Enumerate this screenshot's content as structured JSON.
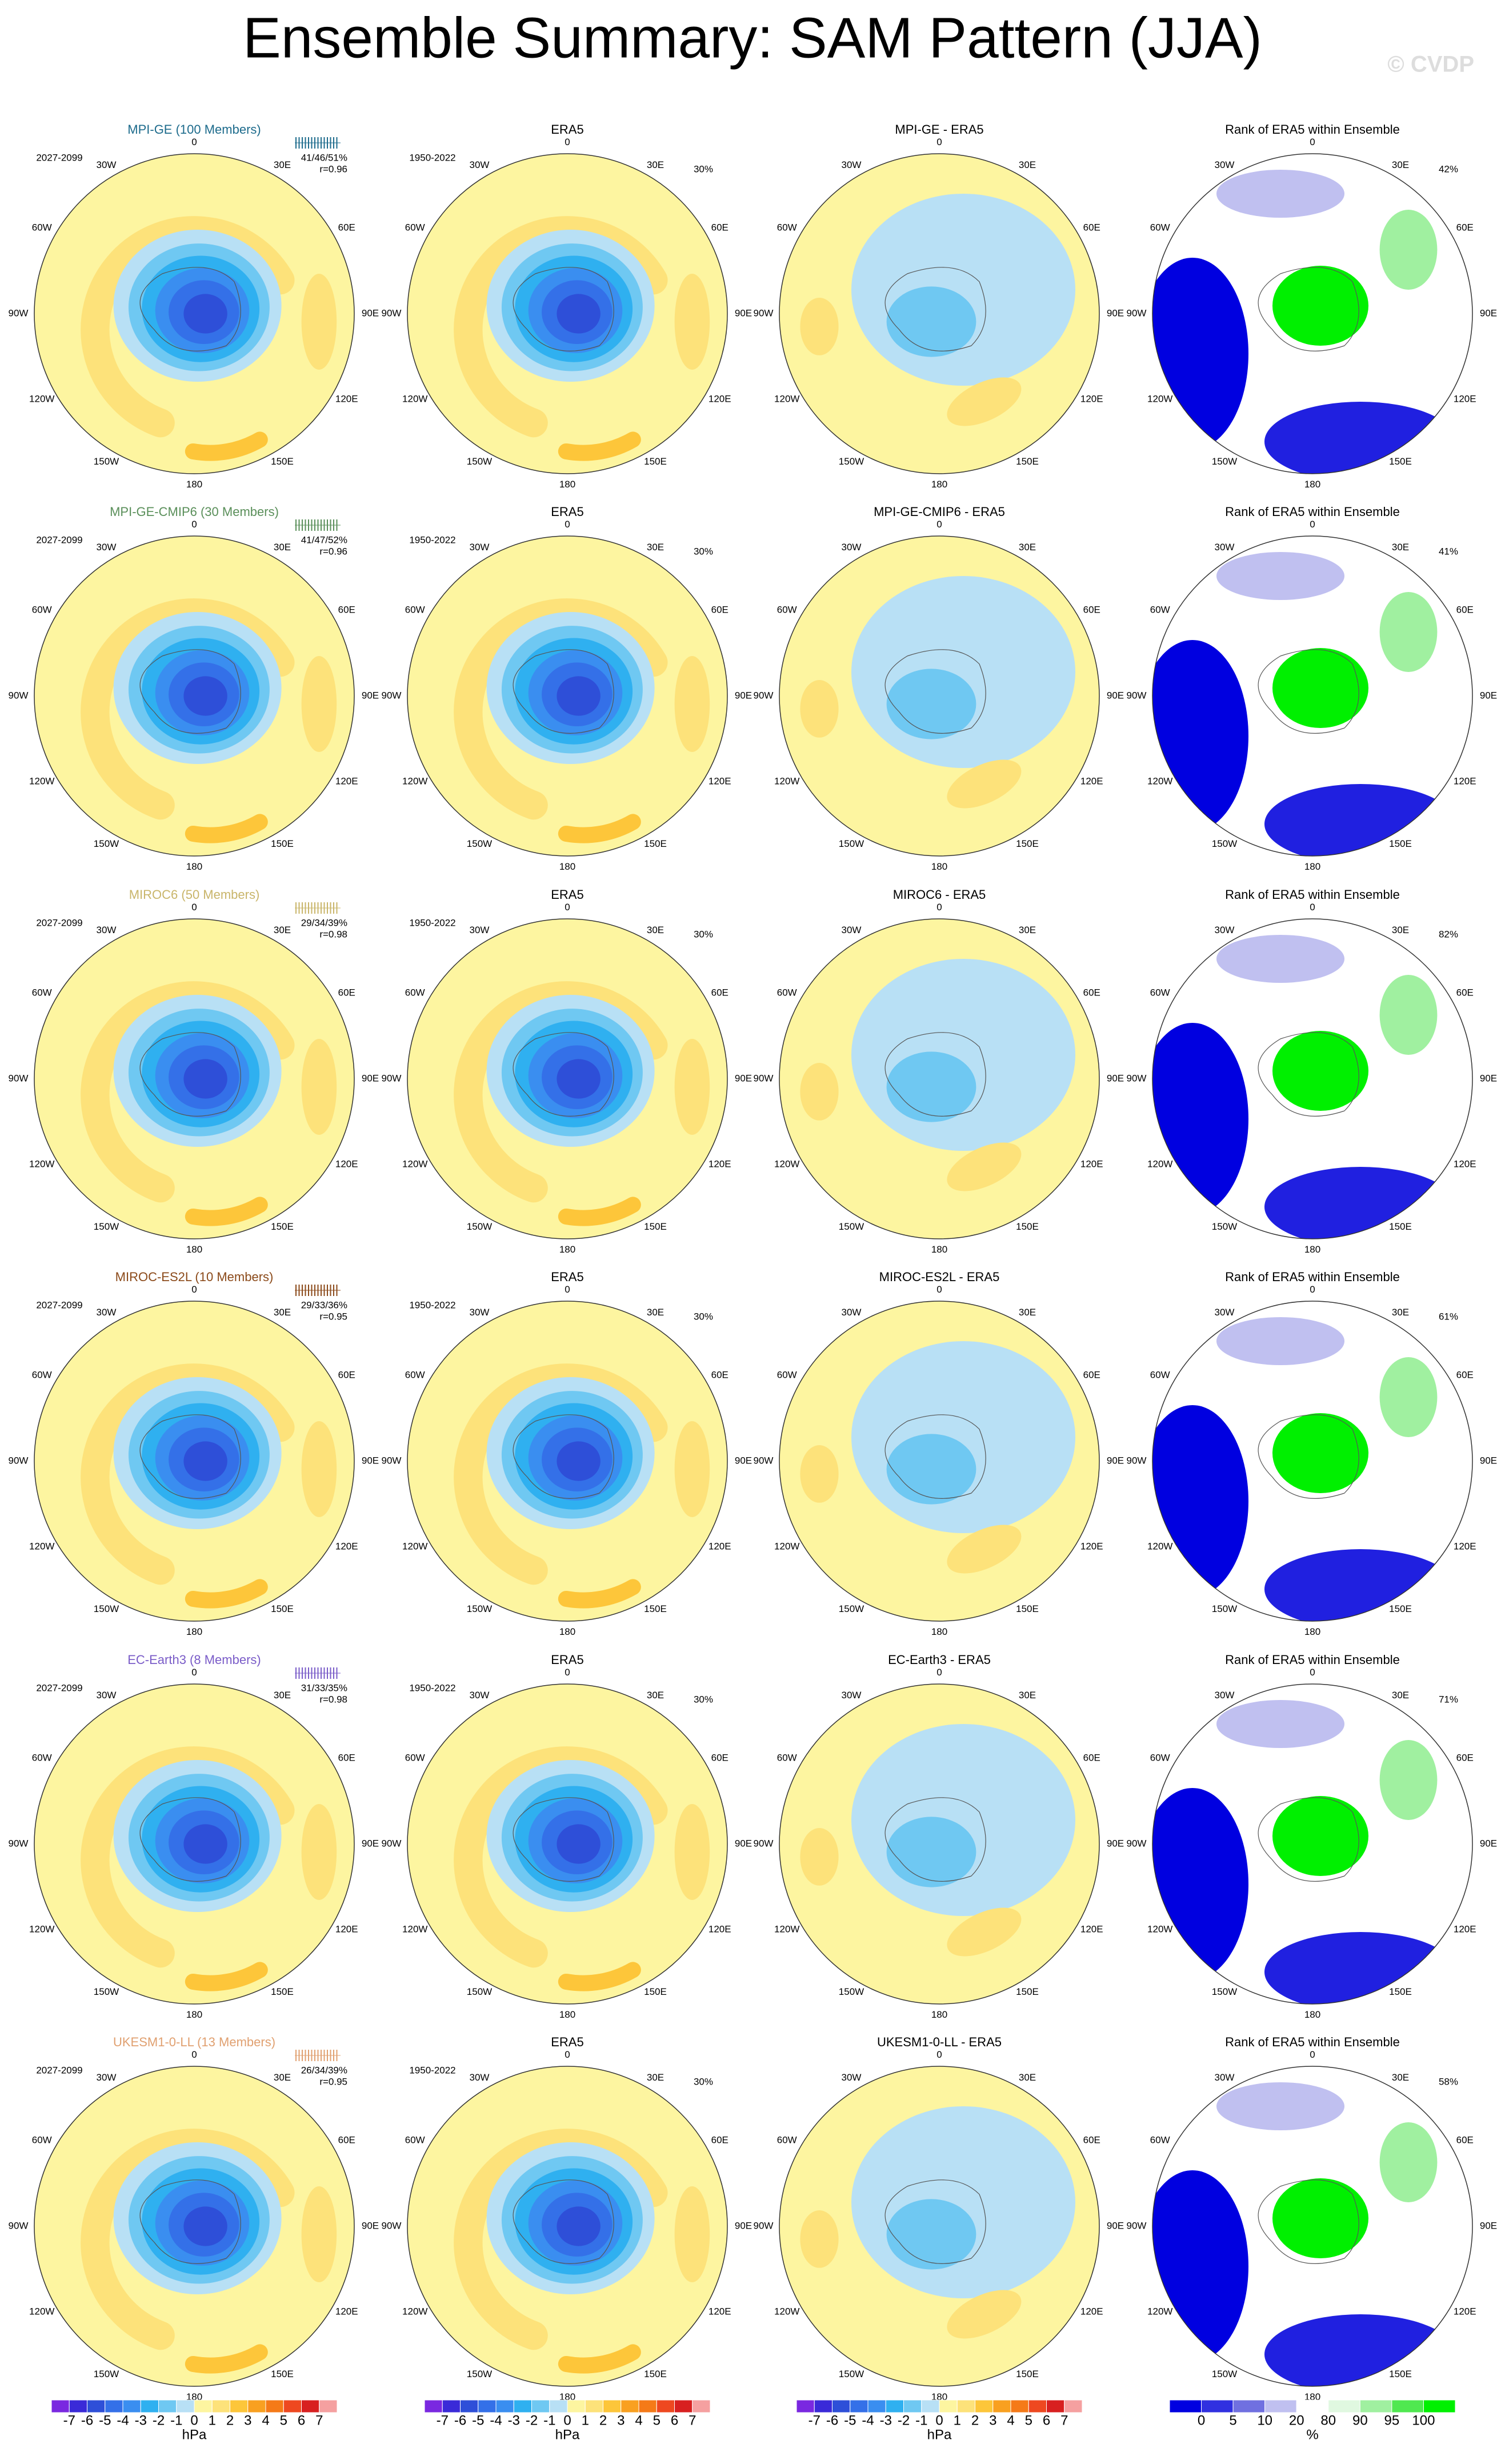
{
  "title": "Ensemble Summary: SAM Pattern (JJA)",
  "watermark": "© CVDP",
  "lon_labels": [
    "0",
    "30E",
    "60E",
    "90E",
    "120E",
    "150E",
    "180",
    "150W",
    "120W",
    "90W",
    "60W",
    "30W"
  ],
  "rows": [
    {
      "model": "MPI-GE (100 Members)",
      "color": "#1d6b8c",
      "model_period": "2027-2099",
      "stats": "41/46/51%",
      "r": "r=0.96",
      "obs": "ERA5",
      "obs_period": "1950-2022",
      "obs_pct": "30%",
      "diff": "MPI-GE - ERA5",
      "rank": "Rank of ERA5 within Ensemble",
      "rank_pct": "42%"
    },
    {
      "model": "MPI-GE-CMIP6 (30 Members)",
      "color": "#5a8f5a",
      "model_period": "2027-2099",
      "stats": "41/47/52%",
      "r": "r=0.96",
      "obs": "ERA5",
      "obs_period": "1950-2022",
      "obs_pct": "30%",
      "diff": "MPI-GE-CMIP6 - ERA5",
      "rank": "Rank of ERA5 within Ensemble",
      "rank_pct": "41%"
    },
    {
      "model": "MIROC6 (50 Members)",
      "color": "#c9b56a",
      "model_period": "2027-2099",
      "stats": "29/34/39%",
      "r": "r=0.98",
      "obs": "ERA5",
      "obs_period": "1950-2022",
      "obs_pct": "30%",
      "diff": "MIROC6 - ERA5",
      "rank": "Rank of ERA5 within Ensemble",
      "rank_pct": "82%"
    },
    {
      "model": "MIROC-ES2L (10 Members)",
      "color": "#8b4a1a",
      "model_period": "2027-2099",
      "stats": "29/33/36%",
      "r": "r=0.95",
      "obs": "ERA5",
      "obs_period": "1950-2022",
      "obs_pct": "30%",
      "diff": "MIROC-ES2L - ERA5",
      "rank": "Rank of ERA5 within Ensemble",
      "rank_pct": "61%"
    },
    {
      "model": "EC-Earth3 (8 Members)",
      "color": "#7a5cc8",
      "model_period": "2027-2099",
      "stats": "31/33/35%",
      "r": "r=0.98",
      "obs": "ERA5",
      "obs_period": "1950-2022",
      "obs_pct": "30%",
      "diff": "EC-Earth3 - ERA5",
      "rank": "Rank of ERA5 within Ensemble",
      "rank_pct": "71%"
    },
    {
      "model": "UKESM1-0-LL (13 Members)",
      "color": "#e0a070",
      "model_period": "2027-2099",
      "stats": "26/34/39%",
      "r": "r=0.95",
      "obs": "ERA5",
      "obs_period": "1950-2022",
      "obs_pct": "30%",
      "diff": "UKESM1-0-LL - ERA5",
      "rank": "Rank of ERA5 within Ensemble",
      "rank_pct": "58%"
    }
  ],
  "colorbars": [
    {
      "ticks": [
        -7,
        -6,
        -5,
        -4,
        -3,
        -2,
        -1,
        0,
        1,
        2,
        3,
        4,
        5,
        6,
        7
      ],
      "units": "hPa",
      "colors": [
        "#7a28e0",
        "#3a2ad8",
        "#2e4fd8",
        "#3470e8",
        "#3a8ef0",
        "#2fb0f0",
        "#6fc8f2",
        "#b8e0f5",
        "#fdf5a0",
        "#fde27a",
        "#fdc63a",
        "#f9a020",
        "#f57a18",
        "#ee4820",
        "#d82020",
        "#f5a0a0"
      ]
    },
    {
      "ticks": [
        -7,
        -6,
        -5,
        -4,
        -3,
        -2,
        -1,
        0,
        1,
        2,
        3,
        4,
        5,
        6,
        7
      ],
      "units": "hPa",
      "colors": [
        "#7a28e0",
        "#3a2ad8",
        "#2e4fd8",
        "#3470e8",
        "#3a8ef0",
        "#2fb0f0",
        "#6fc8f2",
        "#b8e0f5",
        "#fdf5a0",
        "#fde27a",
        "#fdc63a",
        "#f9a020",
        "#f57a18",
        "#ee4820",
        "#d82020",
        "#f5a0a0"
      ]
    },
    {
      "ticks": [
        -7,
        -6,
        -5,
        -4,
        -3,
        -2,
        -1,
        0,
        1,
        2,
        3,
        4,
        5,
        6,
        7
      ],
      "units": "hPa",
      "colors": [
        "#7a28e0",
        "#3a2ad8",
        "#2e4fd8",
        "#3470e8",
        "#3a8ef0",
        "#2fb0f0",
        "#6fc8f2",
        "#b8e0f5",
        "#fdf5a0",
        "#fde27a",
        "#fdc63a",
        "#f9a020",
        "#f57a18",
        "#ee4820",
        "#d82020",
        "#f5a0a0"
      ]
    },
    {
      "ticks": [
        0,
        5,
        10,
        20,
        80,
        90,
        95,
        100
      ],
      "units": "%",
      "colors": [
        "#0000e0",
        "#3030e0",
        "#7070e0",
        "#c0c0f0",
        "#ffffff",
        "#e0f8e0",
        "#a0f0a0",
        "#50e850",
        "#00f000"
      ]
    }
  ]
}
